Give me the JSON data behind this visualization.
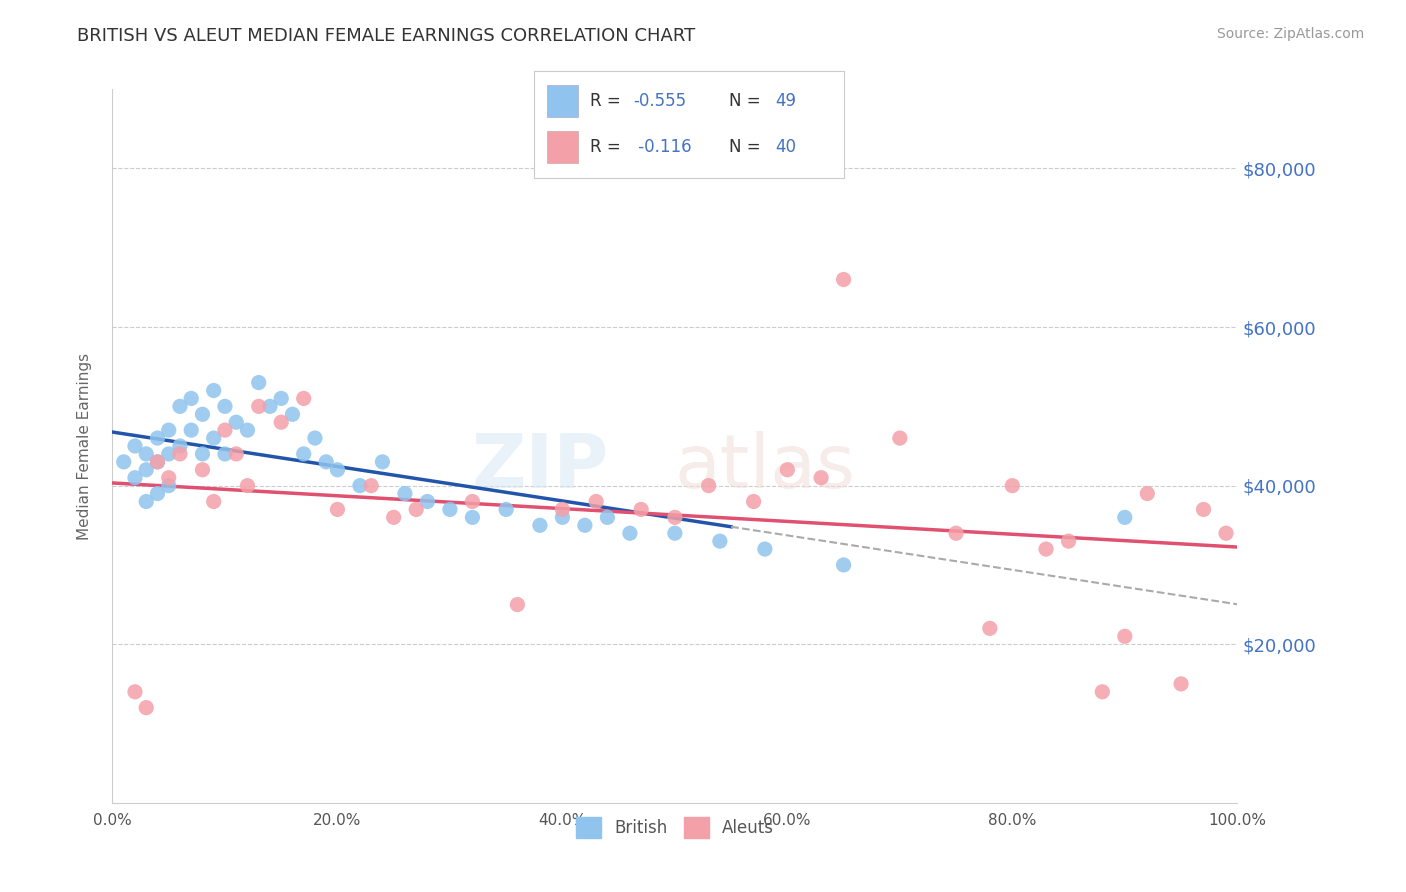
{
  "title": "BRITISH VS ALEUT MEDIAN FEMALE EARNINGS CORRELATION CHART",
  "source": "Source: ZipAtlas.com",
  "ylabel": "Median Female Earnings",
  "ytick_labels": [
    "$20,000",
    "$40,000",
    "$60,000",
    "$80,000"
  ],
  "ytick_values": [
    20000,
    40000,
    60000,
    80000
  ],
  "ylim": [
    0,
    90000
  ],
  "xlim": [
    0,
    1.0
  ],
  "xtick_labels": [
    "0.0%",
    "20.0%",
    "40.0%",
    "60.0%",
    "80.0%",
    "100.0%"
  ],
  "xtick_values": [
    0.0,
    0.2,
    0.4,
    0.6,
    0.8,
    1.0
  ],
  "british_color": "#90C4EE",
  "aleut_color": "#F4A0A8",
  "british_line_color": "#2255AA",
  "aleut_line_color": "#E05070",
  "dashed_color": "#AAAAAA",
  "title_color": "#333333",
  "axis_label_color": "#4472C4",
  "ylabel_color": "#666666",
  "source_color": "#999999",
  "grid_color": "#CCCCCC",
  "background_color": "#FFFFFF",
  "british_scatter_x": [
    0.01,
    0.02,
    0.02,
    0.03,
    0.03,
    0.03,
    0.04,
    0.04,
    0.04,
    0.05,
    0.05,
    0.05,
    0.06,
    0.06,
    0.07,
    0.07,
    0.08,
    0.08,
    0.09,
    0.09,
    0.1,
    0.1,
    0.11,
    0.12,
    0.13,
    0.14,
    0.15,
    0.16,
    0.17,
    0.18,
    0.19,
    0.2,
    0.22,
    0.24,
    0.26,
    0.28,
    0.3,
    0.32,
    0.35,
    0.38,
    0.4,
    0.42,
    0.44,
    0.46,
    0.5,
    0.54,
    0.58,
    0.65,
    0.9
  ],
  "british_scatter_y": [
    43000,
    45000,
    41000,
    44000,
    42000,
    38000,
    46000,
    43000,
    39000,
    47000,
    44000,
    40000,
    50000,
    45000,
    51000,
    47000,
    49000,
    44000,
    52000,
    46000,
    50000,
    44000,
    48000,
    47000,
    53000,
    50000,
    51000,
    49000,
    44000,
    46000,
    43000,
    42000,
    40000,
    43000,
    39000,
    38000,
    37000,
    36000,
    37000,
    35000,
    36000,
    35000,
    36000,
    34000,
    34000,
    33000,
    32000,
    30000,
    36000
  ],
  "british_line_end_x": 0.55,
  "aleut_scatter_x": [
    0.02,
    0.03,
    0.04,
    0.05,
    0.06,
    0.08,
    0.09,
    0.1,
    0.11,
    0.12,
    0.13,
    0.15,
    0.17,
    0.2,
    0.23,
    0.25,
    0.27,
    0.32,
    0.36,
    0.4,
    0.43,
    0.47,
    0.5,
    0.53,
    0.57,
    0.6,
    0.63,
    0.65,
    0.7,
    0.75,
    0.78,
    0.8,
    0.83,
    0.85,
    0.88,
    0.9,
    0.92,
    0.95,
    0.97,
    0.99
  ],
  "aleut_scatter_y": [
    14000,
    12000,
    43000,
    41000,
    44000,
    42000,
    38000,
    47000,
    44000,
    40000,
    50000,
    48000,
    51000,
    37000,
    40000,
    36000,
    37000,
    38000,
    25000,
    37000,
    38000,
    37000,
    36000,
    40000,
    38000,
    42000,
    41000,
    66000,
    46000,
    34000,
    22000,
    40000,
    32000,
    33000,
    14000,
    21000,
    39000,
    15000,
    37000,
    34000
  ]
}
